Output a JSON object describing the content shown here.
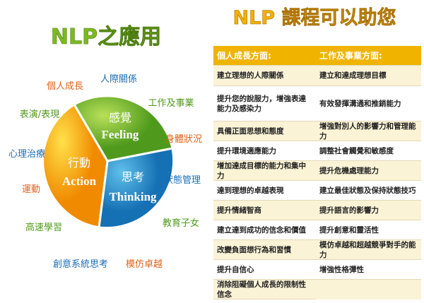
{
  "left": {
    "title": "NLP之應用",
    "segments": [
      {
        "zh": "感覺",
        "en": "Feeling"
      },
      {
        "zh": "行動",
        "en": "Action"
      },
      {
        "zh": "思考",
        "en": "Thinking"
      }
    ],
    "applications": [
      "個人成長",
      "人際關係",
      "工作及事業",
      "身體狀況",
      "狀態管理",
      "教育子女",
      "模仿卓越",
      "創意系統思考",
      "高速學習",
      "運動",
      "心理治療",
      "表演/表現"
    ]
  },
  "right": {
    "title": "NLP 課程可以助您",
    "header": [
      "個人成長方面:",
      "工作及事業方面:"
    ],
    "rows": [
      [
        "建立理想的人際關係",
        "建立和達成理想目標"
      ],
      [
        "提升您的說服力，增強表達能力及感染力",
        "有效發揮溝通和推銷能力"
      ],
      [
        "具備正面思想和態度",
        "增強對別人的影響力和管理能力"
      ],
      [
        "提升環境適應能力",
        "調整社會觸覺和敏感度"
      ],
      [
        "增加達成目標的能力和集中力",
        "提升危機處理能力"
      ],
      [
        "達到理想的卓越表現",
        "建立最佳狀態及保持狀態技巧"
      ],
      [
        "提升情緒智商",
        "提升語言的影響力"
      ],
      [
        "建立達到成功的信念和價值",
        "提升創意和靈活性"
      ],
      [
        "改變負面想行為和習慣",
        "模仿卓越和超越競爭對手的能力"
      ],
      [
        "提升自信心",
        "增強性格彈性"
      ],
      [
        "消除阻礙個人成長的限制性信念"
      ]
    ]
  }
}
